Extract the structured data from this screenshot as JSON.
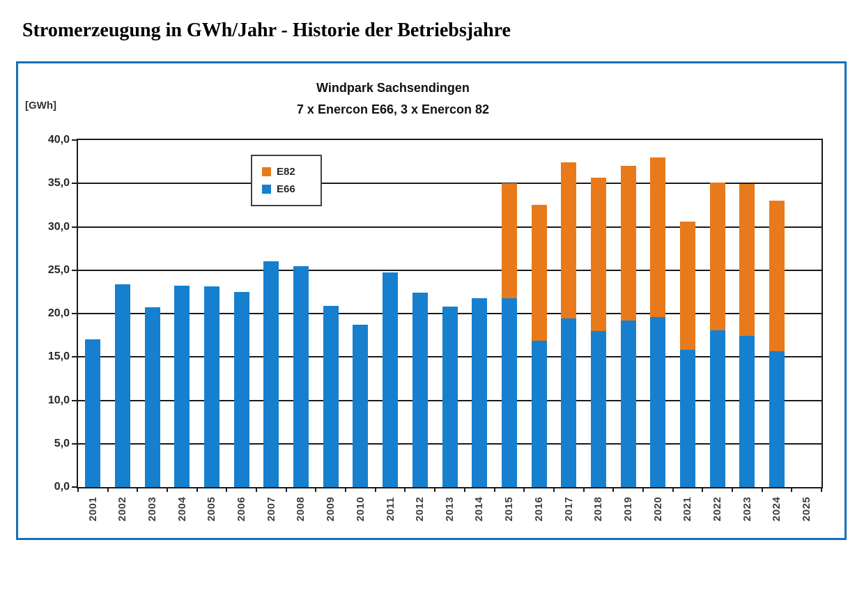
{
  "page": {
    "heading": "Stromerzeugung in GWh/Jahr - Historie der Betriebsjahre"
  },
  "chart": {
    "title_line1": "Windpark Sachsendingen",
    "title_line2": "7 x Enercon E66, 3 x Enercon 82",
    "unit_label": "[GWh]",
    "frame_border_color": "#1A6FB5",
    "grid_color": "#1a1a1a",
    "legend": [
      {
        "label": "E82",
        "color": "#E87A1B"
      },
      {
        "label": "E66",
        "color": "#1680CE"
      }
    ]
  },
  "chart_data": {
    "type": "bar",
    "stacked": true,
    "title": "Windpark Sachsendingen",
    "subtitle": "7 x Enercon E66, 3 x Enercon 82",
    "ylabel": "[GWh]",
    "xlabel": "",
    "ylim": [
      0,
      40
    ],
    "ytick_step": 5,
    "decimal_separator": ",",
    "grid": true,
    "legend_position": "inside-top-left",
    "categories": [
      "2001",
      "2002",
      "2003",
      "2004",
      "2005",
      "2006",
      "2007",
      "2008",
      "2009",
      "2010",
      "2011",
      "2012",
      "2013",
      "2014",
      "2015",
      "2016",
      "2017",
      "2018",
      "2019",
      "2020",
      "2021",
      "2022",
      "2023",
      "2024",
      "2025"
    ],
    "series": [
      {
        "name": "E66",
        "color": "#1680CE",
        "values": [
          17.0,
          23.4,
          20.7,
          23.2,
          23.1,
          22.5,
          26.0,
          25.5,
          20.9,
          18.7,
          24.7,
          22.4,
          20.8,
          21.8,
          21.8,
          16.9,
          19.4,
          18.0,
          19.2,
          19.6,
          15.8,
          18.1,
          17.4,
          15.7,
          0
        ]
      },
      {
        "name": "E82",
        "color": "#E87A1B",
        "values": [
          0,
          0,
          0,
          0,
          0,
          0,
          0,
          0,
          0,
          0,
          0,
          0,
          0,
          0,
          13.2,
          15.6,
          18.0,
          17.7,
          17.8,
          18.4,
          14.8,
          17.0,
          17.5,
          17.3,
          0
        ]
      }
    ],
    "stacked_totals_2015_2024": [
      35.0,
      32.5,
      37.4,
      35.7,
      37.0,
      38.0,
      30.6,
      35.1,
      34.9,
      33.0
    ]
  }
}
